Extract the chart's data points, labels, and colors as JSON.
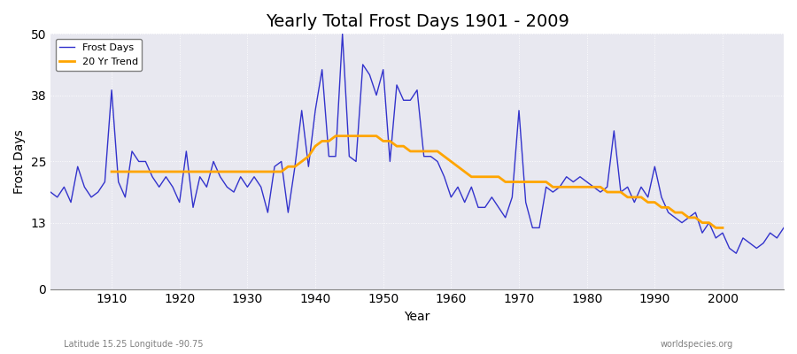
{
  "title": "Yearly Total Frost Days 1901 - 2009",
  "xlabel": "Year",
  "ylabel": "Frost Days",
  "bottom_left_label": "Latitude 15.25 Longitude -90.75",
  "bottom_right_label": "worldspecies.org",
  "xlim": [
    1901,
    2009
  ],
  "ylim": [
    0,
    50
  ],
  "yticks": [
    0,
    13,
    25,
    38,
    50
  ],
  "bg_color": "#e8e8f0",
  "line_color": "#3333cc",
  "trend_color": "#ffa500",
  "years": [
    1901,
    1902,
    1903,
    1904,
    1905,
    1906,
    1907,
    1908,
    1909,
    1910,
    1911,
    1912,
    1913,
    1914,
    1915,
    1916,
    1917,
    1918,
    1919,
    1920,
    1921,
    1922,
    1923,
    1924,
    1925,
    1926,
    1927,
    1928,
    1929,
    1930,
    1931,
    1932,
    1933,
    1934,
    1935,
    1936,
    1937,
    1938,
    1939,
    1940,
    1941,
    1942,
    1943,
    1944,
    1945,
    1946,
    1947,
    1948,
    1949,
    1950,
    1951,
    1952,
    1953,
    1954,
    1955,
    1956,
    1957,
    1958,
    1959,
    1960,
    1961,
    1962,
    1963,
    1964,
    1965,
    1966,
    1967,
    1968,
    1969,
    1970,
    1971,
    1972,
    1973,
    1974,
    1975,
    1976,
    1977,
    1978,
    1979,
    1980,
    1981,
    1982,
    1983,
    1984,
    1985,
    1986,
    1987,
    1988,
    1989,
    1990,
    1991,
    1992,
    1993,
    1994,
    1995,
    1996,
    1997,
    1998,
    1999,
    2000,
    2001,
    2002,
    2003,
    2004,
    2005,
    2006,
    2007,
    2008,
    2009
  ],
  "frost_days": [
    19,
    18,
    20,
    17,
    24,
    20,
    18,
    19,
    21,
    39,
    21,
    18,
    27,
    25,
    25,
    22,
    20,
    22,
    20,
    17,
    27,
    16,
    22,
    20,
    25,
    22,
    20,
    19,
    22,
    20,
    22,
    20,
    15,
    24,
    25,
    15,
    24,
    35,
    24,
    35,
    43,
    26,
    26,
    50,
    26,
    25,
    44,
    42,
    38,
    43,
    25,
    40,
    37,
    37,
    39,
    26,
    26,
    25,
    22,
    18,
    20,
    17,
    20,
    16,
    16,
    18,
    16,
    14,
    18,
    35,
    17,
    12,
    12,
    20,
    19,
    20,
    22,
    21,
    22,
    21,
    20,
    19,
    20,
    31,
    19,
    20,
    17,
    20,
    18,
    24,
    18,
    15,
    14,
    13,
    14,
    15,
    11,
    13,
    10,
    11,
    8,
    7,
    10,
    9,
    8,
    9,
    11,
    10,
    12
  ],
  "trend_years": [
    1910,
    1911,
    1912,
    1913,
    1914,
    1915,
    1916,
    1917,
    1918,
    1919,
    1920,
    1921,
    1922,
    1923,
    1924,
    1925,
    1926,
    1927,
    1928,
    1929,
    1930,
    1931,
    1932,
    1933,
    1934,
    1935,
    1936,
    1937,
    1938,
    1939,
    1940,
    1941,
    1942,
    1943,
    1944,
    1945,
    1946,
    1947,
    1948,
    1949,
    1950,
    1951,
    1952,
    1953,
    1954,
    1955,
    1956,
    1957,
    1958,
    1959,
    1960,
    1961,
    1962,
    1963,
    1964,
    1965,
    1966,
    1967,
    1968,
    1969,
    1970,
    1971,
    1972,
    1973,
    1974,
    1975,
    1976,
    1977,
    1978,
    1979,
    1980,
    1981,
    1982,
    1983,
    1984,
    1985,
    1986,
    1987,
    1988,
    1989,
    1990,
    1991,
    1992,
    1993,
    1994,
    1995,
    1996,
    1997,
    1998,
    1999,
    2000
  ],
  "trend_values": [
    23,
    23,
    23,
    23,
    23,
    23,
    23,
    23,
    23,
    23,
    23,
    23,
    23,
    23,
    23,
    23,
    23,
    23,
    23,
    23,
    23,
    23,
    23,
    23,
    23,
    23,
    24,
    24,
    25,
    26,
    28,
    29,
    29,
    30,
    30,
    30,
    30,
    30,
    30,
    30,
    29,
    29,
    28,
    28,
    27,
    27,
    27,
    27,
    27,
    26,
    25,
    24,
    23,
    22,
    22,
    22,
    22,
    22,
    21,
    21,
    21,
    21,
    21,
    21,
    21,
    20,
    20,
    20,
    20,
    20,
    20,
    20,
    20,
    19,
    19,
    19,
    18,
    18,
    18,
    17,
    17,
    16,
    16,
    15,
    15,
    14,
    14,
    13,
    13,
    12,
    12
  ]
}
